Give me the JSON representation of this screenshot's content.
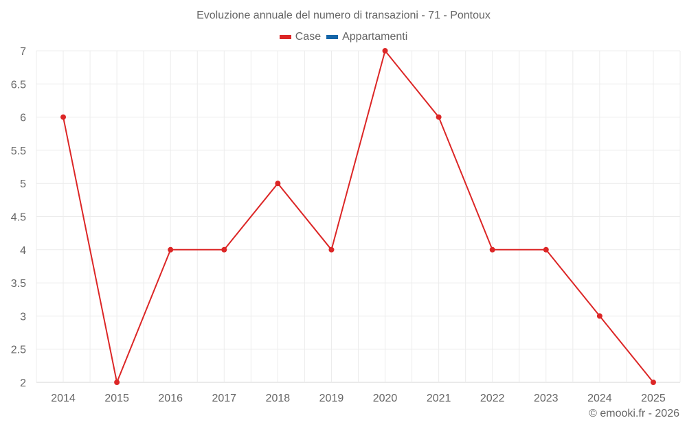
{
  "title": "Evoluzione annuale del numero di transazioni - 71 - Pontoux",
  "legend": [
    {
      "label": "Case",
      "color": "#dc2626"
    },
    {
      "label": "Appartamenti",
      "color": "#1565a8"
    }
  ],
  "credit": "© emooki.fr - 2026",
  "chart_data": {
    "type": "line",
    "title": "Evoluzione annuale del numero di transazioni - 71 - Pontoux",
    "xlabel": "",
    "ylabel": "",
    "categories": [
      "2014",
      "2015",
      "2016",
      "2017",
      "2018",
      "2019",
      "2020",
      "2021",
      "2022",
      "2023",
      "2024",
      "2025"
    ],
    "series": [
      {
        "name": "Case",
        "color": "#dc2626",
        "values": [
          6,
          2,
          4,
          4,
          5,
          4,
          7,
          6,
          4,
          4,
          3,
          2
        ]
      },
      {
        "name": "Appartamenti",
        "color": "#1565a8",
        "values": []
      }
    ],
    "ylim": [
      2,
      7
    ],
    "yticks": [
      2,
      2.5,
      3,
      3.5,
      4,
      4.5,
      5,
      5.5,
      6,
      6.5,
      7
    ],
    "ytick_labels": [
      "2",
      "2.5",
      "3",
      "3.5",
      "4",
      "4.5",
      "5",
      "5.5",
      "6",
      "6.5",
      "7"
    ],
    "grid": true,
    "legend_position": "top"
  }
}
